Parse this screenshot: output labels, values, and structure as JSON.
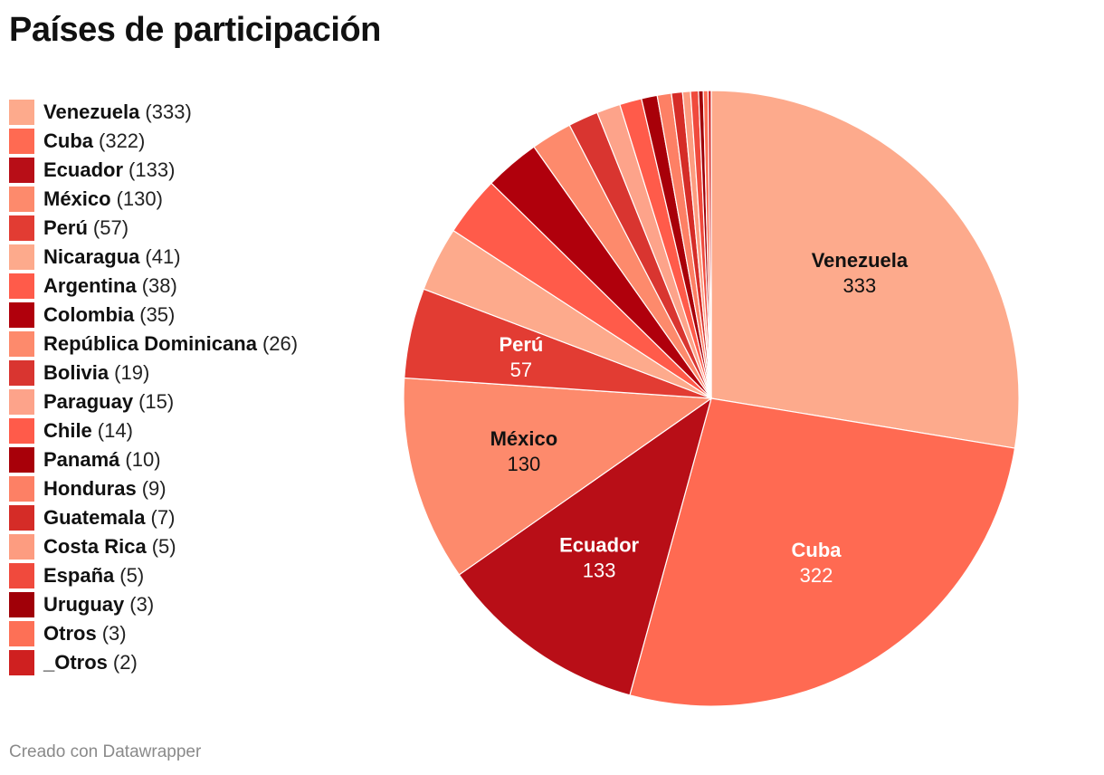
{
  "title": "Países de participación",
  "footer": "Creado con Datawrapper",
  "chart_data": {
    "type": "pie",
    "title": "Países de participación",
    "legend_position": "left",
    "slices": [
      {
        "label": "Venezuela",
        "value": 333,
        "color": "#fdaa8c",
        "show_label": true,
        "label_color": "#111111"
      },
      {
        "label": "Cuba",
        "value": 322,
        "color": "#ff6a52",
        "show_label": true,
        "label_color": "#ffffff"
      },
      {
        "label": "Ecuador",
        "value": 133,
        "color": "#b80e17",
        "show_label": true,
        "label_color": "#ffffff"
      },
      {
        "label": "México",
        "value": 130,
        "color": "#fd8a6c",
        "show_label": true,
        "label_color": "#111111"
      },
      {
        "label": "Perú",
        "value": 57,
        "color": "#e23c33",
        "show_label": true,
        "label_color": "#ffffff"
      },
      {
        "label": "Nicaragua",
        "value": 41,
        "color": "#fdaa8c",
        "show_label": false
      },
      {
        "label": "Argentina",
        "value": 38,
        "color": "#ff5b4a",
        "show_label": false
      },
      {
        "label": "Colombia",
        "value": 35,
        "color": "#b0000c",
        "show_label": false
      },
      {
        "label": "República Dominicana",
        "value": 26,
        "color": "#fd8a6c",
        "show_label": false
      },
      {
        "label": "Bolivia",
        "value": 19,
        "color": "#d93530",
        "show_label": false
      },
      {
        "label": "Paraguay",
        "value": 15,
        "color": "#fda38a",
        "show_label": false
      },
      {
        "label": "Chile",
        "value": 14,
        "color": "#ff5b4a",
        "show_label": false
      },
      {
        "label": "Panamá",
        "value": 10,
        "color": "#a80009",
        "show_label": false
      },
      {
        "label": "Honduras",
        "value": 9,
        "color": "#fd8065",
        "show_label": false
      },
      {
        "label": "Guatemala",
        "value": 7,
        "color": "#d52c27",
        "show_label": false
      },
      {
        "label": "Costa Rica",
        "value": 5,
        "color": "#fd9c80",
        "show_label": false
      },
      {
        "label": "España",
        "value": 5,
        "color": "#f04a3d",
        "show_label": false
      },
      {
        "label": "Uruguay",
        "value": 3,
        "color": "#a00008",
        "show_label": false
      },
      {
        "label": "Otros",
        "value": 3,
        "color": "#fd7056",
        "show_label": false
      },
      {
        "label": "_Otros",
        "value": 2,
        "color": "#cf2020",
        "show_label": false
      }
    ]
  }
}
